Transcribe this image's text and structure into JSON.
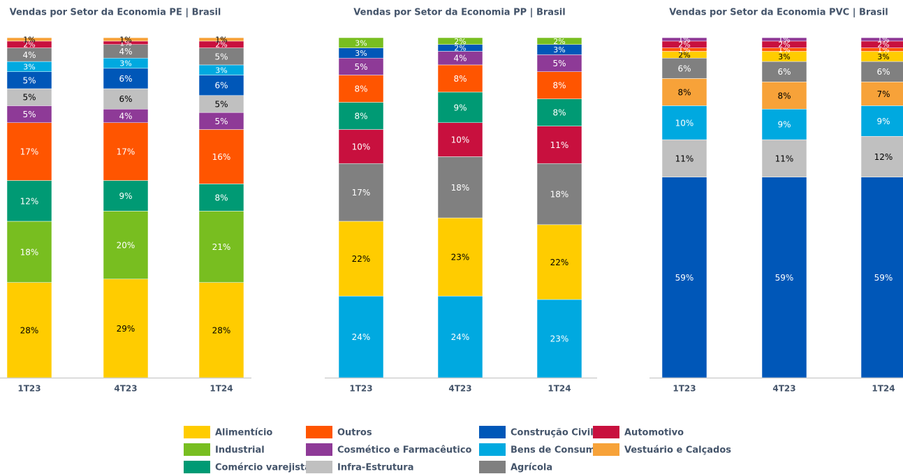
{
  "legend": [
    {
      "name": "Alimentício",
      "color": "#FFCC00"
    },
    {
      "name": "Outros",
      "color": "#FF5500"
    },
    {
      "name": "Construção Civil",
      "color": "#0057B8"
    },
    {
      "name": "Automotivo",
      "color": "#C8103E"
    },
    {
      "name": "Industrial",
      "color": "#78BE20"
    },
    {
      "name": "Cosmético e Farmacêutico",
      "color": "#8E3A97"
    },
    {
      "name": "Bens de Consumo",
      "color": "#00A9E0"
    },
    {
      "name": "Vestuário e Calçados",
      "color": "#F7A239"
    },
    {
      "name": "Comércio varejista",
      "color": "#009A74"
    },
    {
      "name": "Infra-Estrutura",
      "color": "#C0C0C0"
    },
    {
      "name": "Agrícola",
      "color": "#808080"
    }
  ],
  "chart_data": [
    {
      "type": "bar",
      "stacked": true,
      "title": "Vendas por Setor da Economia PE | Brasil",
      "categories": [
        "1T23",
        "4T23",
        "1T24"
      ],
      "ylim": [
        0,
        100
      ],
      "series": [
        {
          "name": "Alimentício",
          "values": [
            28,
            29,
            28
          ],
          "value_labels": [
            "28%",
            "29%",
            "28%"
          ]
        },
        {
          "name": "Industrial",
          "values": [
            18,
            20,
            21
          ],
          "value_labels": [
            "18%",
            "20%",
            "21%"
          ]
        },
        {
          "name": "Comércio varejista",
          "values": [
            12,
            9,
            8
          ],
          "value_labels": [
            "12%",
            "9%",
            "8%"
          ]
        },
        {
          "name": "Outros",
          "values": [
            17,
            17,
            16
          ],
          "value_labels": [
            "17%",
            "17%",
            "16%"
          ]
        },
        {
          "name": "Cosmético e Farmacêutico",
          "values": [
            5,
            4,
            5
          ],
          "value_labels": [
            "5%",
            "4%",
            "5%"
          ]
        },
        {
          "name": "Infra-Estrutura",
          "values": [
            5,
            6,
            5
          ],
          "value_labels": [
            "5%",
            "6%",
            "5%"
          ]
        },
        {
          "name": "Construção Civil",
          "values": [
            5,
            6,
            6
          ],
          "value_labels": [
            "5%",
            "6%",
            "6%"
          ]
        },
        {
          "name": "Bens de Consumo",
          "values": [
            3,
            3,
            3
          ],
          "value_labels": [
            "3%",
            "3%",
            "3%"
          ]
        },
        {
          "name": "Agrícola",
          "values": [
            4,
            4,
            5
          ],
          "value_labels": [
            "4%",
            "4%",
            "5%"
          ]
        },
        {
          "name": "Automotivo",
          "values": [
            2,
            1,
            2
          ],
          "value_labels": [
            "2%",
            "1%",
            "2%"
          ]
        },
        {
          "name": "Vestuário e Calçados",
          "values": [
            1,
            1,
            1
          ],
          "value_labels": [
            "1%",
            "1%",
            "1%"
          ]
        }
      ]
    },
    {
      "type": "bar",
      "stacked": true,
      "title": "Vendas por Setor da Economia PP | Brasil",
      "categories": [
        "1T23",
        "4T23",
        "1T24"
      ],
      "ylim": [
        0,
        100
      ],
      "series": [
        {
          "name": "Bens de Consumo",
          "values": [
            24,
            24,
            23
          ],
          "value_labels": [
            "24%",
            "24%",
            "23%"
          ]
        },
        {
          "name": "Alimentício",
          "values": [
            22,
            23,
            22
          ],
          "value_labels": [
            "22%",
            "23%",
            "22%"
          ]
        },
        {
          "name": "Agrícola",
          "values": [
            17,
            18,
            18
          ],
          "value_labels": [
            "17%",
            "18%",
            "18%"
          ]
        },
        {
          "name": "Automotivo",
          "values": [
            10,
            10,
            11
          ],
          "value_labels": [
            "10%",
            "10%",
            "11%"
          ]
        },
        {
          "name": "Comércio varejista",
          "values": [
            8,
            9,
            8
          ],
          "value_labels": [
            "8%",
            "9%",
            "8%"
          ]
        },
        {
          "name": "Outros",
          "values": [
            8,
            8,
            8
          ],
          "value_labels": [
            "8%",
            "8%",
            "8%"
          ]
        },
        {
          "name": "Cosmético e Farmacêutico",
          "values": [
            5,
            4,
            5
          ],
          "value_labels": [
            "5%",
            "4%",
            "5%"
          ]
        },
        {
          "name": "Construção Civil",
          "values": [
            3,
            2,
            3
          ],
          "value_labels": [
            "3%",
            "2%",
            "3%"
          ]
        },
        {
          "name": "Industrial",
          "values": [
            3,
            2,
            2
          ],
          "value_labels": [
            "3%",
            "2%",
            "2%"
          ]
        }
      ]
    },
    {
      "type": "bar",
      "stacked": true,
      "title": "Vendas por Setor da Economia PVC | Brasil",
      "categories": [
        "1T23",
        "4T23",
        "1T24"
      ],
      "ylim": [
        0,
        100
      ],
      "series": [
        {
          "name": "Construção Civil",
          "values": [
            59,
            59,
            59
          ],
          "value_labels": [
            "59%",
            "59%",
            "59%"
          ]
        },
        {
          "name": "Infra-Estrutura",
          "values": [
            11,
            11,
            12
          ],
          "value_labels": [
            "11%",
            "11%",
            "12%"
          ]
        },
        {
          "name": "Bens de Consumo",
          "values": [
            10,
            9,
            9
          ],
          "value_labels": [
            "10%",
            "9%",
            "9%"
          ]
        },
        {
          "name": "Vestuário e Calçados",
          "values": [
            8,
            8,
            7
          ],
          "value_labels": [
            "8%",
            "8%",
            "7%"
          ]
        },
        {
          "name": "Agrícola",
          "values": [
            6,
            6,
            6
          ],
          "value_labels": [
            "6%",
            "6%",
            "6%"
          ]
        },
        {
          "name": "Alimentício",
          "values": [
            2,
            3,
            3
          ],
          "value_labels": [
            "2%",
            "3%",
            "3%"
          ]
        },
        {
          "name": "Outros",
          "values": [
            1,
            1,
            1
          ],
          "value_labels": [
            "1%",
            "1%",
            "1%"
          ]
        },
        {
          "name": "Automotivo",
          "values": [
            2,
            2,
            2
          ],
          "value_labels": [
            "2%",
            "2%",
            "2%"
          ]
        },
        {
          "name": "Cosmético e Farmacêutico",
          "values": [
            1,
            1,
            1
          ],
          "value_labels": [
            "1%",
            "1%",
            "1%"
          ]
        }
      ]
    }
  ]
}
